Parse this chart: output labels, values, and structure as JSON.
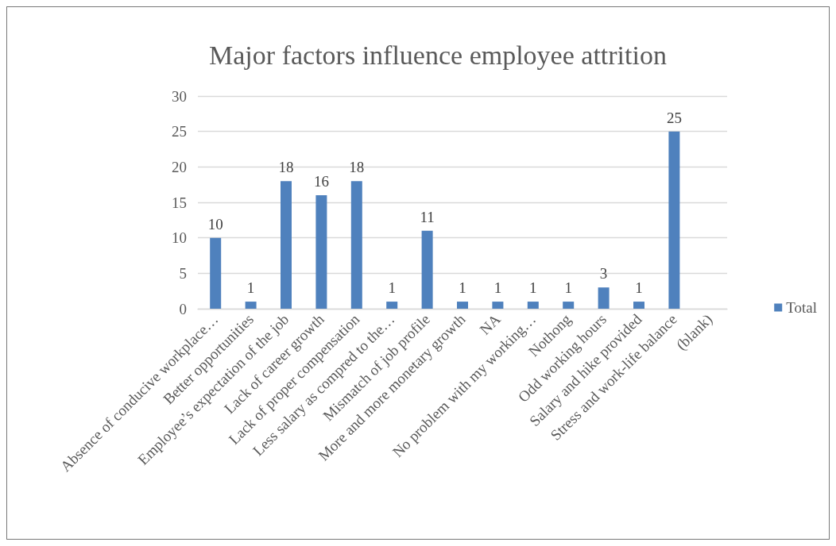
{
  "chart_data": {
    "type": "bar",
    "title": "Major factors influence employee attrition",
    "categories": [
      "Absence of conducive workplace…",
      "Better opportunities",
      "Employee’s expectation of the job",
      "Lack of career growth",
      "Lack of proper compensation",
      "Less salary as compred to the…",
      "Mismatch of job profile",
      "More and more monetary growth",
      "NA",
      "No problem with my working…",
      "Nothong",
      "Odd working hours",
      "Salary and hike provided",
      "Stress and work-life balance",
      "(blank)"
    ],
    "series": [
      {
        "name": "Total",
        "color": "#4f81bd",
        "values": [
          10,
          1,
          18,
          16,
          18,
          1,
          11,
          1,
          1,
          1,
          1,
          3,
          1,
          25,
          null
        ]
      }
    ],
    "ylim": [
      0,
      30
    ],
    "yticks": [
      0,
      5,
      10,
      15,
      20,
      25,
      30
    ],
    "grid": "y",
    "legend": "right",
    "data_labels": true
  }
}
